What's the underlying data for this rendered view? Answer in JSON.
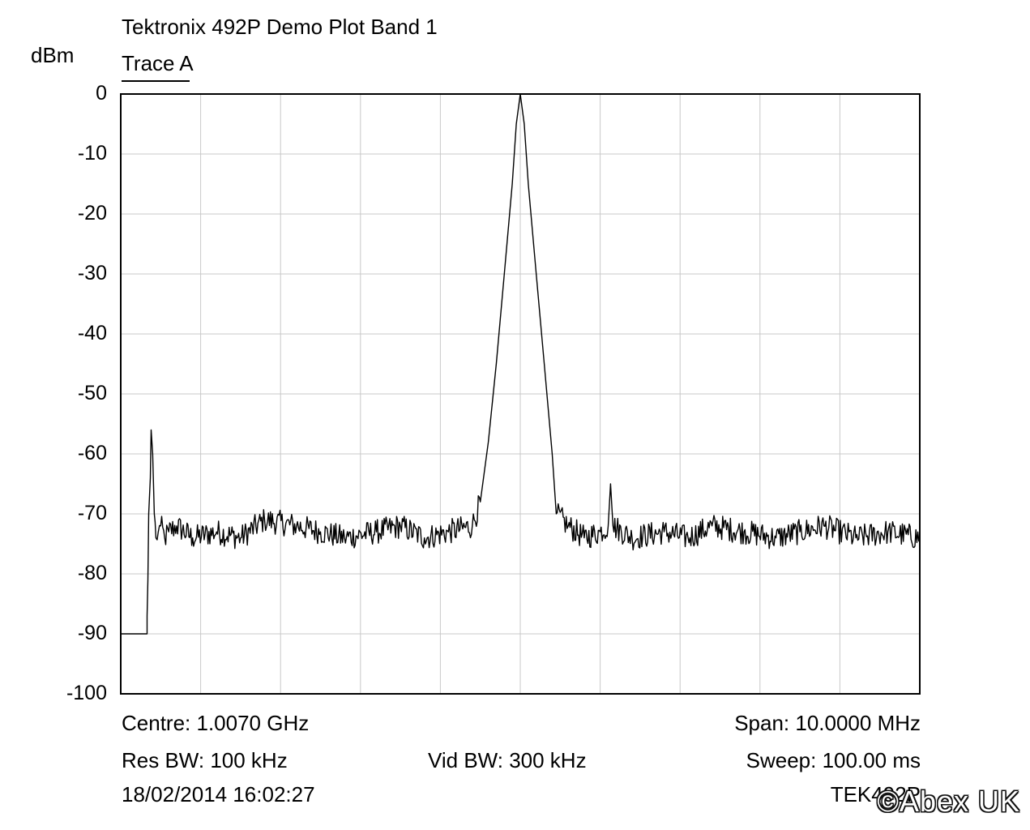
{
  "chart_data": {
    "type": "line",
    "title": "Tektronix 492P Demo Plot Band 1",
    "legend": {
      "entries": [
        "Trace A"
      ],
      "placement": "top-left"
    },
    "ylabel": "dBm",
    "xlabel": "",
    "ylim": [
      -100,
      0
    ],
    "yticks": [
      "0",
      "-10",
      "-20",
      "-30",
      "-40",
      "-50",
      "-60",
      "-70",
      "-80",
      "-90",
      "-100"
    ],
    "grid": true,
    "x_divisions": 10,
    "x_unit": "MHz",
    "xlim": [
      1002.0,
      1012.0
    ],
    "series": [
      {
        "name": "Trace A",
        "color": "#000000",
        "noise_floor_dbm": -73.5,
        "x": [
          1002.0,
          1002.33,
          1002.33,
          1002.34,
          1002.35,
          1002.37,
          1002.38,
          1002.4,
          1002.42,
          1002.44,
          1002.47,
          1002.5,
          1002.55,
          1002.6,
          1002.7,
          1002.9,
          1003.2,
          1003.5,
          1003.8,
          1004.2,
          1004.5,
          1004.8,
          1005.2,
          1005.5,
          1005.8,
          1006.1,
          1006.4,
          1006.5,
          1006.6,
          1006.7,
          1006.8,
          1006.9,
          1006.95,
          1007.0,
          1007.05,
          1007.1,
          1007.2,
          1007.3,
          1007.4,
          1007.45,
          1007.6,
          1007.8,
          1008.0,
          1008.1,
          1008.13,
          1008.16,
          1008.4,
          1008.8,
          1009.1,
          1009.4,
          1009.8,
          1010.2,
          1010.5,
          1010.8,
          1011.2,
          1011.6,
          1012.0
        ],
        "y": [
          -90,
          -90,
          -87,
          -81,
          -70,
          -64,
          -56,
          -60,
          -70,
          -74,
          -73,
          -72,
          -74,
          -73,
          -72,
          -74,
          -73,
          -74,
          -71,
          -72,
          -73,
          -74,
          -73,
          -72,
          -74,
          -73,
          -72,
          -68,
          -58,
          -45,
          -30,
          -15,
          -5,
          0,
          -5,
          -15,
          -30,
          -45,
          -60,
          -70,
          -72,
          -74,
          -73,
          -72,
          -65,
          -72,
          -74,
          -73,
          -74,
          -72,
          -73,
          -74,
          -73,
          -72,
          -74,
          -73,
          -74
        ]
      }
    ]
  },
  "footer": {
    "centre": "Centre: 1.0070 GHz",
    "span": "Span: 10.0000 MHz",
    "res_bw": "Res BW: 100 kHz",
    "vid_bw": "Vid BW: 300 kHz",
    "sweep": "Sweep: 100.00 ms",
    "timestamp": "18/02/2014 16:02:27",
    "instrument": "TEK492P"
  },
  "watermark": "©Abex UK"
}
